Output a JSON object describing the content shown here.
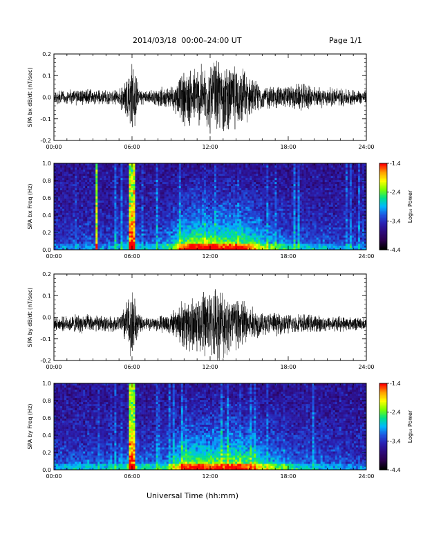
{
  "header": {
    "title": "2014/03/18  00:00–24:00 UT",
    "page": "Page 1/1"
  },
  "xlabel": "Universal Time (hh:mm)",
  "colors": {
    "background": "#ffffff",
    "trace": "#000000",
    "colormap": [
      "#000000",
      "#2a004a",
      "#2d0a7a",
      "#2a1fb0",
      "#1e55e0",
      "#00b8ff",
      "#00e08a",
      "#7cff00",
      "#ffff00",
      "#ffa000",
      "#ff0000"
    ]
  },
  "chart_data": [
    {
      "type": "line",
      "ylabel": "SPA bx dB/dt (nT/sec)",
      "xlim": [
        0,
        24
      ],
      "ylim": [
        -0.2,
        0.2
      ],
      "x_ticks": [
        "00:00",
        "06:00",
        "12:00",
        "18:00",
        "24:00"
      ],
      "y_ticks": [
        "-0.2",
        "-0.1",
        "0.0",
        "0.1",
        "0.2"
      ],
      "envelope": {
        "hours": [
          0,
          1,
          2,
          3,
          4,
          5,
          5.8,
          6.1,
          6.5,
          7,
          8,
          9,
          9.5,
          10,
          11,
          12,
          12.5,
          13,
          14,
          14.5,
          15,
          16,
          17,
          18,
          19,
          20,
          21,
          22,
          23,
          24
        ],
        "amplitude": [
          0.035,
          0.035,
          0.04,
          0.04,
          0.035,
          0.035,
          0.16,
          0.2,
          0.05,
          0.03,
          0.045,
          0.06,
          0.09,
          0.14,
          0.16,
          0.18,
          0.2,
          0.17,
          0.16,
          0.15,
          0.11,
          0.06,
          0.06,
          0.06,
          0.07,
          0.055,
          0.05,
          0.05,
          0.04,
          0.035
        ]
      },
      "baseline": 0.0
    },
    {
      "type": "heatmap",
      "ylabel": "SPA bx Freq (Hz)",
      "xlim": [
        0,
        24
      ],
      "ylim": [
        0.0,
        1.0
      ],
      "x_ticks": [
        "00:00",
        "06:00",
        "12:00",
        "18:00",
        "24:00"
      ],
      "y_ticks": [
        "0.0",
        "0.2",
        "0.4",
        "0.6",
        "0.8",
        "1.0"
      ],
      "colorbar": {
        "label": "Log₁₀ Power",
        "range": [
          -4.4,
          -1.4
        ],
        "ticks": [
          "-1.4",
          "-2.4",
          "-3.4",
          "-4.4"
        ]
      },
      "activity": {
        "hours": [
          0,
          2,
          4,
          5.5,
          6,
          6.5,
          8,
          9,
          10,
          11,
          12,
          13,
          14,
          15,
          16,
          17,
          18,
          20,
          22,
          24
        ],
        "level": [
          0.2,
          0.25,
          0.25,
          0.3,
          0.6,
          0.3,
          0.3,
          0.45,
          0.8,
          0.9,
          0.85,
          0.85,
          0.85,
          0.75,
          0.55,
          0.45,
          0.35,
          0.3,
          0.25,
          0.2
        ]
      },
      "bright_lines_hours": [
        5.8,
        6.1,
        3.3
      ]
    },
    {
      "type": "line",
      "ylabel": "SPA by dB/dt (nT/sec)",
      "xlim": [
        0,
        24
      ],
      "ylim": [
        -0.2,
        0.2
      ],
      "x_ticks": [
        "00:00",
        "06:00",
        "12:00",
        "18:00",
        "24:00"
      ],
      "y_ticks": [
        "-0.2",
        "-0.1",
        "0.0",
        "0.1",
        "0.2"
      ],
      "envelope": {
        "hours": [
          0,
          1,
          2,
          3,
          4,
          5,
          5.8,
          6.1,
          6.5,
          7,
          8,
          9,
          9.5,
          10,
          11,
          12,
          12.5,
          13,
          14,
          14.5,
          15,
          16,
          17,
          18,
          19,
          20,
          21,
          22,
          23,
          24
        ],
        "amplitude": [
          0.03,
          0.04,
          0.05,
          0.045,
          0.04,
          0.04,
          0.15,
          0.2,
          0.05,
          0.03,
          0.04,
          0.06,
          0.08,
          0.14,
          0.16,
          0.17,
          0.2,
          0.18,
          0.16,
          0.14,
          0.1,
          0.06,
          0.06,
          0.05,
          0.05,
          0.045,
          0.04,
          0.04,
          0.035,
          0.03
        ]
      },
      "baseline": -0.03
    },
    {
      "type": "heatmap",
      "ylabel": "SPA by Freq (Hz)",
      "xlim": [
        0,
        24
      ],
      "ylim": [
        0.0,
        1.0
      ],
      "x_ticks": [
        "00:00",
        "06:00",
        "12:00",
        "18:00",
        "24:00"
      ],
      "y_ticks": [
        "0.0",
        "0.2",
        "0.4",
        "0.6",
        "0.8",
        "1.0"
      ],
      "colorbar": {
        "label": "Log₁₀ Power",
        "range": [
          -4.4,
          -1.4
        ],
        "ticks": [
          "-1.4",
          "-2.4",
          "-3.4",
          "-4.4"
        ]
      },
      "activity": {
        "hours": [
          0,
          2,
          4,
          5.5,
          6,
          6.5,
          8,
          9,
          10,
          11,
          12,
          13,
          14,
          15,
          16,
          17,
          18,
          20,
          22,
          24
        ],
        "level": [
          0.25,
          0.3,
          0.3,
          0.35,
          0.6,
          0.35,
          0.35,
          0.45,
          0.8,
          0.85,
          0.8,
          0.85,
          0.85,
          0.75,
          0.6,
          0.5,
          0.4,
          0.3,
          0.25,
          0.2
        ]
      },
      "bright_lines_hours": [
        5.8,
        6.1
      ]
    }
  ]
}
